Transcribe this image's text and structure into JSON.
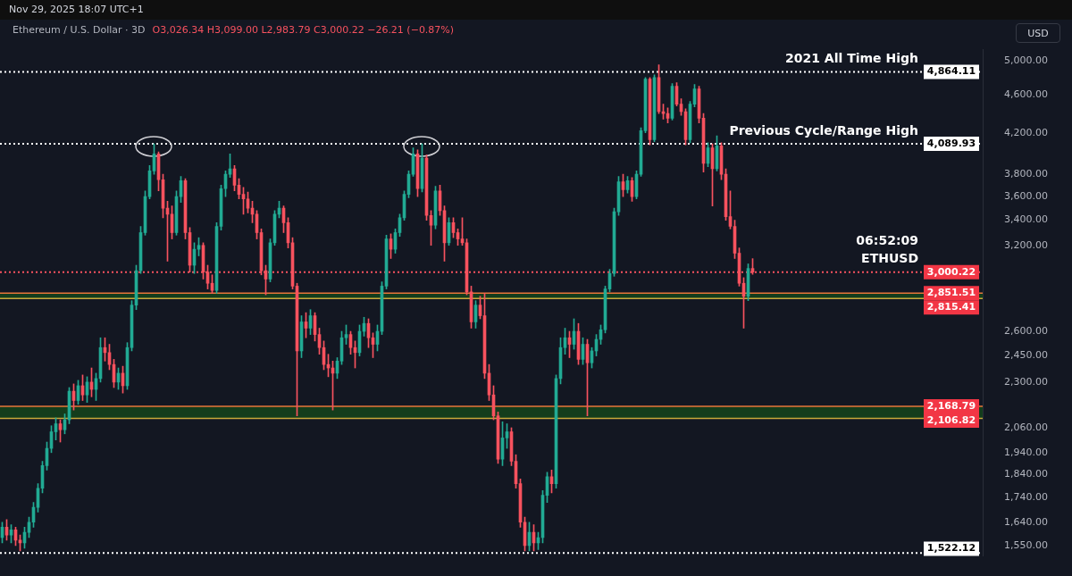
{
  "chart_data": {
    "type": "candlestick",
    "title": "Ethereum / U.S. Dollar · 3D",
    "subtitle": "O3,026.34 H3,099.00 L2,983.79 C3,000.22 −26.21 (−0.87%)",
    "ylabel": "USD",
    "annotations": [
      "Nov 29, 2025 18:07 UTC+1",
      {
        "text": "2021 All Time High",
        "y": 4864.11
      },
      {
        "text": "Previous Cycle/Range High",
        "y": 4089.93
      },
      {
        "text": "ETHUSD",
        "y": 3000.22
      },
      {
        "text": "06:52:09",
        "y": 3000.22
      }
    ],
    "log": true,
    "grid": false,
    "legend": false,
    "tick_labels": "y",
    "colors": [
      "#22ab94",
      "#f7525f",
      "#22ab94",
      "#f7525f",
      "#f7525f",
      "#22ab94",
      "#22ab94",
      "#22ab94",
      "#22ab94",
      "#22ab94",
      "#22ab94",
      "#22ab94",
      "#22ab94",
      "#f7525f",
      "#22ab94",
      "#22ab94",
      "#f7525f",
      "#22ab94",
      "#f7525f",
      "#22ab94",
      "#f7525f",
      "#22ab94",
      "#22ab94",
      "#f7525f",
      "#f7525f",
      "#f7525f",
      "#22ab94",
      "#f7525f",
      "#22ab94",
      "#22ab94",
      "#22ab94",
      "#22ab94",
      "#22ab94",
      "#22ab94",
      "#22ab94",
      "#f7525f",
      "#f7525f",
      "#f7525f",
      "#f7525f",
      "#22ab94",
      "#22ab94",
      "#f7525f",
      "#f7525f",
      "#22ab94",
      "#22ab94",
      "#f7525f",
      "#f7525f",
      "#f7525f",
      "#22ab94",
      "#22ab94",
      "#22ab94",
      "#22ab94",
      "#f7525f",
      "#f7525f",
      "#f7525f",
      "#f7525f",
      "#f7525f",
      "#f7525f",
      "#f7525f",
      "#f7525f",
      "#22ab94",
      "#22ab94",
      "#22ab94",
      "#f7525f",
      "#f7525f",
      "#f7525f",
      "#f7525f",
      "#22ab94",
      "#f7525f",
      "#22ab94",
      "#f7525f",
      "#f7525f",
      "#f7525f",
      "#f7525f",
      "#f7525f",
      "#22ab94",
      "#22ab94",
      "#22ab94",
      "#f7525f",
      "#f7525f",
      "#22ab94",
      "#22ab94",
      "#f7525f",
      "#f7525f",
      "#22ab94",
      "#22ab94",
      "#22ab94",
      "#f7525f",
      "#22ab94",
      "#22ab94",
      "#22ab94",
      "#22ab94",
      "#22ab94",
      "#f7525f",
      "#22ab94",
      "#f7525f",
      "#f7525f",
      "#22ab94",
      "#f7525f",
      "#f7525f",
      "#22ab94",
      "#f7525f",
      "#f7525f",
      "#f7525f",
      "#f7525f",
      "#f7525f",
      "#22ab94",
      "#f7525f",
      "#f7525f",
      "#f7525f",
      "#f7525f",
      "#f7525f",
      "#22ab94",
      "#22ab94",
      "#f7525f",
      "#f7525f",
      "#f7525f",
      "#f7525f",
      "#22ab94",
      "#f7525f",
      "#22ab94",
      "#22ab94",
      "#22ab94",
      "#f7525f",
      "#22ab94",
      "#22ab94",
      "#22ab94",
      "#f7525f",
      "#22ab94",
      "#f7525f",
      "#22ab94",
      "#f7525f",
      "#22ab94",
      "#22ab94",
      "#22ab94",
      "#22ab94",
      "#22ab94",
      "#22ab94",
      "#22ab94",
      "#f7525f",
      "#22ab94",
      "#f7525f",
      "#22ab94",
      "#22ab94",
      "#22ab94",
      "#f7525f",
      "#22ab94",
      "#f7525f",
      "#f7525f",
      "#f7525f",
      "#22ab94",
      "#f7525f",
      "#f7525f",
      "#f7525f",
      "#22ab94",
      "#22ab94",
      "#f7525f",
      "#f7525f",
      "#22ab94",
      "#f7525f",
      "#22ab94",
      "#f7525f",
      "#f7525f",
      "#f7525f",
      "#f7525f",
      "#f7525f",
      "#f7525f",
      "#22ab94",
      "#f7525f",
      null,
      null,
      null,
      null,
      null,
      null,
      null,
      null,
      null,
      null,
      null,
      null,
      null,
      null,
      null,
      null,
      null,
      null,
      null,
      null,
      null,
      null,
      null,
      null,
      null,
      null,
      null,
      null,
      null,
      null,
      null,
      null,
      null,
      null,
      null,
      null,
      null,
      null,
      null,
      null,
      null,
      null,
      null,
      null,
      null,
      null,
      null,
      null,
      null,
      null,
      null
    ],
    "ylim": [
      1512,
      5140
    ],
    "yticks": [
      {
        "value": 1550,
        "label": "1,550.00"
      },
      {
        "value": 1640,
        "label": "1,640.00"
      },
      {
        "value": 1740,
        "label": "1,740.00"
      },
      {
        "value": 1840,
        "label": "1,840.00"
      },
      {
        "value": 1940,
        "label": "1,940.00"
      },
      {
        "value": 2060,
        "label": "2,060.00"
      },
      {
        "value": 2300,
        "label": "2,300.00"
      },
      {
        "value": 2450,
        "label": "2,450.00"
      },
      {
        "value": 2600,
        "label": "2,600.00"
      },
      {
        "value": 3200,
        "label": "3,200.00"
      },
      {
        "value": 3400,
        "label": "3,400.00"
      },
      {
        "value": 3600,
        "label": "3,600.00"
      },
      {
        "value": 3800,
        "label": "3,800.00"
      },
      {
        "value": 4200,
        "label": "4,200.00"
      },
      {
        "value": 4600,
        "label": "4,600.00"
      },
      {
        "value": 5000,
        "label": "5,000.00"
      }
    ],
    "ref_lines": [
      {
        "axis": "y",
        "value": 4864.11,
        "label": "4,864.11",
        "color": "#ffffff",
        "line_style": "dotted"
      },
      {
        "axis": "y",
        "value": 4089.93,
        "label": "4,089.93",
        "color": "#ffffff",
        "line_style": "dotted"
      },
      {
        "axis": "y",
        "value": 3000.22,
        "label": "3,000.22",
        "color": "#f7525f",
        "line_style": "dotted"
      },
      {
        "axis": "y",
        "value": 2851.51,
        "label": "2,851.51",
        "color": "#e8763a",
        "line_style": "solid"
      },
      {
        "axis": "y",
        "value": 2815.41,
        "label": "2,815.41",
        "color": "#c9a93a",
        "line_style": "solid"
      },
      {
        "axis": "y",
        "value": 2168.79,
        "label": "2,168.79",
        "color": "#e8763a",
        "line_style": "solid"
      },
      {
        "axis": "y",
        "value": 2106.82,
        "label": "2,106.82",
        "color": "#c9a93a",
        "line_style": "solid"
      },
      {
        "axis": "y",
        "value": 1522.12,
        "label": "1,522.12",
        "color": "#ffffff",
        "line_style": "dotted"
      }
    ],
    "bands": [
      {
        "axis": "y",
        "from": 2106.82,
        "to": 2168.79,
        "color": "#143d1c"
      },
      {
        "axis": "y",
        "from": 2815.41,
        "to": 2851.51,
        "color": "#143d1c"
      }
    ],
    "categories": [
      null,
      null,
      null,
      null,
      null,
      null,
      null,
      null,
      null,
      null,
      null,
      null,
      null,
      null,
      null,
      null,
      null,
      null,
      null,
      null,
      null,
      null,
      null,
      null,
      null,
      null,
      null,
      null,
      null,
      null,
      null,
      null,
      null,
      null,
      null,
      null,
      null,
      null,
      null,
      null,
      null,
      null,
      null,
      null,
      null,
      null,
      null,
      null,
      null,
      null,
      null,
      null,
      null,
      null,
      null,
      null,
      null,
      null,
      null,
      null,
      null,
      null,
      null,
      null,
      null,
      null,
      null,
      null,
      null,
      null,
      null,
      null,
      null,
      null,
      null,
      null,
      null,
      null,
      null,
      null,
      null,
      null,
      null,
      null,
      null,
      null,
      null,
      null,
      null,
      null,
      null,
      null,
      null,
      null,
      null,
      null,
      null,
      null,
      null,
      null,
      null,
      null,
      null,
      null,
      null,
      null,
      null,
      null,
      null,
      null,
      null,
      null,
      null,
      null,
      null,
      null,
      null,
      null,
      null,
      null,
      null,
      null,
      null,
      null,
      null,
      null,
      null,
      null,
      null,
      null,
      null,
      null,
      null,
      null,
      null,
      null,
      null,
      null,
      null,
      null,
      null,
      null,
      null,
      null,
      null,
      null,
      null,
      null,
      null,
      null,
      null,
      null,
      null,
      null,
      null,
      null,
      null,
      null,
      null,
      null,
      null,
      null,
      null,
      null,
      null,
      null,
      null,
      null,
      null,
      null,
      null,
      null,
      null,
      null,
      null,
      null,
      null,
      null,
      null,
      null,
      null,
      null,
      null,
      null,
      null,
      null,
      null,
      null,
      null,
      null,
      null,
      null,
      null,
      null,
      null,
      null,
      null,
      null,
      null,
      null,
      null,
      null,
      null,
      null,
      null,
      null,
      null,
      null,
      null,
      null,
      null,
      null,
      null,
      null,
      null,
      null,
      null,
      null,
      null,
      null
    ],
    "ohlc": [
      [
        1580,
        1640,
        1560,
        1620
      ],
      [
        1620,
        1650,
        1570,
        1590
      ],
      [
        1590,
        1630,
        1560,
        1610
      ],
      [
        1610,
        1620,
        1550,
        1570
      ],
      [
        1570,
        1590,
        1530,
        1560
      ],
      [
        1560,
        1620,
        1540,
        1600
      ],
      [
        1600,
        1660,
        1580,
        1640
      ],
      [
        1640,
        1720,
        1620,
        1700
      ],
      [
        1700,
        1800,
        1680,
        1780
      ],
      [
        1780,
        1900,
        1760,
        1880
      ],
      [
        1880,
        1990,
        1860,
        1960
      ],
      [
        1960,
        2070,
        1940,
        2040
      ],
      [
        2040,
        2110,
        2000,
        2080
      ],
      [
        2080,
        2100,
        1990,
        2050
      ],
      [
        2050,
        2130,
        2030,
        2100
      ],
      [
        2100,
        2270,
        2080,
        2250
      ],
      [
        2250,
        2290,
        2150,
        2200
      ],
      [
        2200,
        2310,
        2180,
        2280
      ],
      [
        2280,
        2340,
        2200,
        2230
      ],
      [
        2230,
        2330,
        2190,
        2300
      ],
      [
        2300,
        2380,
        2220,
        2260
      ],
      [
        2260,
        2350,
        2200,
        2320
      ],
      [
        2320,
        2560,
        2300,
        2500
      ],
      [
        2500,
        2560,
        2420,
        2470
      ],
      [
        2470,
        2520,
        2370,
        2400
      ],
      [
        2400,
        2430,
        2270,
        2300
      ],
      [
        2300,
        2380,
        2260,
        2350
      ],
      [
        2350,
        2390,
        2240,
        2280
      ],
      [
        2280,
        2530,
        2260,
        2500
      ],
      [
        2500,
        2800,
        2480,
        2770
      ],
      [
        2770,
        3050,
        2740,
        3010
      ],
      [
        3010,
        3350,
        2990,
        3300
      ],
      [
        3300,
        3650,
        3280,
        3600
      ],
      [
        3600,
        3880,
        3580,
        3830
      ],
      [
        3830,
        4090,
        3800,
        3990
      ],
      [
        3990,
        4010,
        3650,
        3750
      ],
      [
        3750,
        3800,
        3420,
        3500
      ],
      [
        3500,
        3560,
        3080,
        3450
      ],
      [
        3450,
        3520,
        3250,
        3300
      ],
      [
        3300,
        3650,
        3280,
        3600
      ],
      [
        3600,
        3780,
        3550,
        3740
      ],
      [
        3740,
        3760,
        3250,
        3300
      ],
      [
        3300,
        3340,
        3000,
        3050
      ],
      [
        3050,
        3220,
        2990,
        3170
      ],
      [
        3170,
        3260,
        3120,
        3200
      ],
      [
        3200,
        3220,
        2950,
        3000
      ],
      [
        3000,
        3050,
        2880,
        2920
      ],
      [
        2920,
        2980,
        2850,
        2870
      ],
      [
        2870,
        3380,
        2850,
        3350
      ],
      [
        3350,
        3700,
        3320,
        3670
      ],
      [
        3670,
        3830,
        3600,
        3800
      ],
      [
        3800,
        3990,
        3770,
        3850
      ],
      [
        3850,
        3880,
        3650,
        3700
      ],
      [
        3700,
        3760,
        3580,
        3620
      ],
      [
        3620,
        3680,
        3450,
        3580
      ],
      [
        3580,
        3640,
        3460,
        3500
      ],
      [
        3500,
        3560,
        3380,
        3450
      ],
      [
        3450,
        3480,
        3250,
        3300
      ],
      [
        3300,
        3330,
        2980,
        3010
      ],
      [
        3010,
        3050,
        2840,
        2950
      ],
      [
        2950,
        3250,
        2930,
        3220
      ],
      [
        3220,
        3480,
        3200,
        3450
      ],
      [
        3450,
        3560,
        3420,
        3500
      ],
      [
        3500,
        3520,
        3300,
        3380
      ],
      [
        3380,
        3420,
        3180,
        3220
      ],
      [
        3220,
        3260,
        2880,
        2900
      ],
      [
        2900,
        2920,
        2120,
        2480
      ],
      [
        2480,
        2700,
        2440,
        2660
      ],
      [
        2660,
        2720,
        2560,
        2620
      ],
      [
        2620,
        2740,
        2580,
        2700
      ],
      [
        2700,
        2720,
        2540,
        2580
      ],
      [
        2580,
        2620,
        2460,
        2500
      ],
      [
        2500,
        2540,
        2370,
        2400
      ],
      [
        2400,
        2460,
        2330,
        2380
      ],
      [
        2380,
        2420,
        2150,
        2350
      ],
      [
        2350,
        2440,
        2320,
        2420
      ],
      [
        2420,
        2600,
        2400,
        2560
      ],
      [
        2560,
        2640,
        2520,
        2580
      ],
      [
        2580,
        2600,
        2460,
        2500
      ],
      [
        2500,
        2540,
        2380,
        2470
      ],
      [
        2470,
        2640,
        2450,
        2600
      ],
      [
        2600,
        2690,
        2570,
        2650
      ],
      [
        2650,
        2680,
        2500,
        2560
      ],
      [
        2560,
        2590,
        2440,
        2520
      ],
      [
        2520,
        2640,
        2480,
        2600
      ],
      [
        2600,
        2930,
        2580,
        2900
      ],
      [
        2900,
        3280,
        2880,
        3250
      ],
      [
        3250,
        3290,
        3100,
        3170
      ],
      [
        3170,
        3330,
        3140,
        3300
      ],
      [
        3300,
        3450,
        3270,
        3420
      ],
      [
        3420,
        3650,
        3400,
        3620
      ],
      [
        3620,
        3830,
        3590,
        3800
      ],
      [
        3800,
        4050,
        3780,
        3990
      ],
      [
        3990,
        4030,
        3600,
        3670
      ],
      [
        3670,
        4090,
        3640,
        3950
      ],
      [
        3950,
        3980,
        3400,
        3440
      ],
      [
        3440,
        3480,
        3200,
        3360
      ],
      [
        3360,
        3690,
        3330,
        3650
      ],
      [
        3650,
        3700,
        3440,
        3480
      ],
      [
        3480,
        3520,
        3080,
        3220
      ],
      [
        3220,
        3420,
        3200,
        3380
      ],
      [
        3380,
        3420,
        3260,
        3300
      ],
      [
        3300,
        3330,
        3200,
        3250
      ],
      [
        3250,
        3420,
        3200,
        3220
      ],
      [
        3220,
        3250,
        2840,
        2860
      ],
      [
        2860,
        2900,
        2620,
        2660
      ],
      [
        2660,
        2800,
        2620,
        2770
      ],
      [
        2770,
        2830,
        2680,
        2700
      ],
      [
        2700,
        2850,
        2320,
        2350
      ],
      [
        2350,
        2400,
        2200,
        2230
      ],
      [
        2230,
        2280,
        2100,
        2120
      ],
      [
        2120,
        2140,
        1890,
        1910
      ],
      [
        1910,
        2090,
        1880,
        2010
      ],
      [
        2010,
        2080,
        1960,
        2040
      ],
      [
        2040,
        2060,
        1880,
        1900
      ],
      [
        1900,
        1930,
        1780,
        1800
      ],
      [
        1800,
        1820,
        1620,
        1640
      ],
      [
        1640,
        1660,
        1530,
        1550
      ],
      [
        1550,
        1640,
        1530,
        1600
      ],
      [
        1600,
        1630,
        1530,
        1560
      ],
      [
        1560,
        1600,
        1535,
        1580
      ],
      [
        1580,
        1770,
        1560,
        1750
      ],
      [
        1750,
        1850,
        1720,
        1830
      ],
      [
        1830,
        1860,
        1760,
        1800
      ],
      [
        1800,
        2340,
        1780,
        2320
      ],
      [
        2320,
        2560,
        2290,
        2500
      ],
      [
        2500,
        2620,
        2460,
        2560
      ],
      [
        2560,
        2600,
        2440,
        2520
      ],
      [
        2520,
        2680,
        2490,
        2600
      ],
      [
        2600,
        2650,
        2400,
        2430
      ],
      [
        2430,
        2560,
        2400,
        2520
      ],
      [
        2520,
        2550,
        2120,
        2410
      ],
      [
        2410,
        2500,
        2380,
        2480
      ],
      [
        2480,
        2580,
        2450,
        2550
      ],
      [
        2550,
        2640,
        2520,
        2610
      ],
      [
        2610,
        2900,
        2590,
        2880
      ],
      [
        2880,
        3020,
        2860,
        2990
      ],
      [
        2990,
        3500,
        2970,
        3470
      ],
      [
        3470,
        3780,
        3440,
        3730
      ],
      [
        3730,
        3800,
        3600,
        3660
      ],
      [
        3660,
        3780,
        3630,
        3740
      ],
      [
        3740,
        3770,
        3560,
        3600
      ],
      [
        3600,
        3830,
        3580,
        3800
      ],
      [
        3800,
        4250,
        3780,
        4220
      ],
      [
        4220,
        4800,
        4200,
        4780
      ],
      [
        4780,
        4800,
        4080,
        4130
      ],
      [
        4130,
        4830,
        4110,
        4800
      ],
      [
        4800,
        4950,
        4400,
        4420
      ],
      [
        4420,
        4500,
        4340,
        4400
      ],
      [
        4400,
        4460,
        4300,
        4350
      ],
      [
        4350,
        4730,
        4330,
        4700
      ],
      [
        4700,
        4740,
        4480,
        4500
      ],
      [
        4500,
        4560,
        4380,
        4420
      ],
      [
        4420,
        4450,
        4080,
        4130
      ],
      [
        4130,
        4530,
        4100,
        4500
      ],
      [
        4500,
        4720,
        4470,
        4670
      ],
      [
        4670,
        4700,
        4300,
        4350
      ],
      [
        4350,
        4400,
        3820,
        3900
      ],
      [
        3900,
        4100,
        3870,
        4050
      ],
      [
        4050,
        4090,
        3520,
        3850
      ],
      [
        3850,
        4170,
        3830,
        4070
      ],
      [
        4070,
        4100,
        3750,
        3800
      ],
      [
        3800,
        3850,
        3400,
        3430
      ],
      [
        3430,
        3650,
        3330,
        3350
      ],
      [
        3350,
        3400,
        3100,
        3140
      ],
      [
        3140,
        3180,
        2900,
        2920
      ],
      [
        2920,
        2960,
        2620,
        2830
      ],
      [
        2830,
        3060,
        2800,
        3026.34
      ],
      [
        3026.34,
        3099.0,
        2983.79,
        3000.22
      ],
      null,
      null,
      null,
      null,
      null,
      null,
      null,
      null,
      null,
      null,
      null,
      null,
      null,
      null,
      null,
      null,
      null,
      null,
      null,
      null,
      null,
      null,
      null,
      null,
      null,
      null,
      null,
      null,
      null,
      null,
      null,
      null,
      null,
      null,
      null,
      null,
      null,
      null,
      null,
      null,
      null,
      null,
      null,
      null,
      null,
      null,
      null,
      null,
      null,
      null,
      null
    ]
  }
}
